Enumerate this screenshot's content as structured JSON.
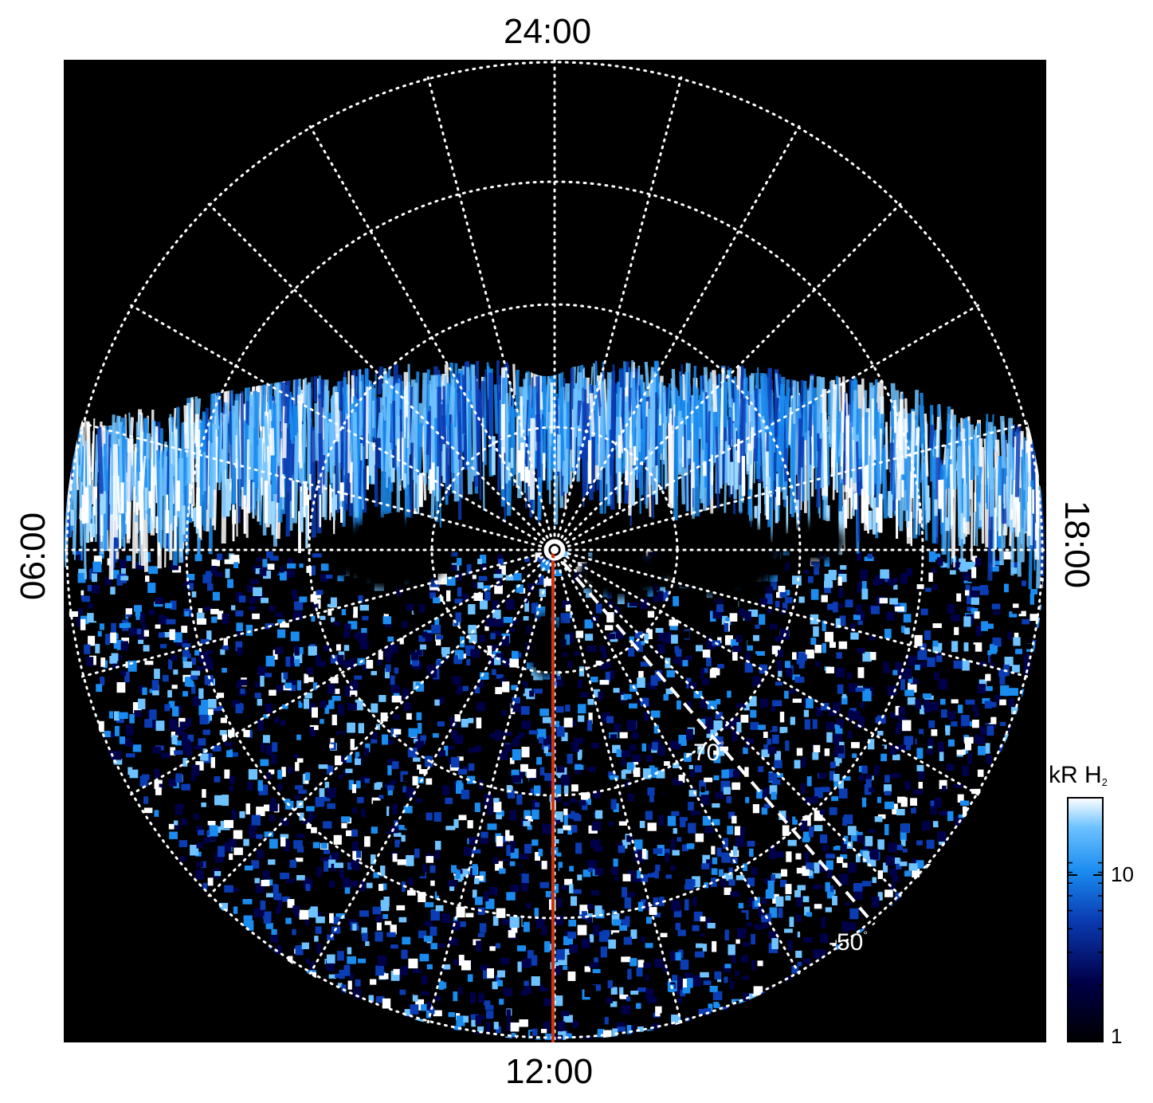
{
  "local_time_labels": {
    "top": "24:00",
    "bottom": "12:00",
    "left": "06:00",
    "right": "18:00"
  },
  "latitude_labels": {
    "inner": "-70",
    "outer": "-50",
    "degree_symbol": "°"
  },
  "colorbar": {
    "title_main": "kR H",
    "title_sub": "2",
    "ticks": [
      "10",
      "1"
    ],
    "scale": "log",
    "range": [
      1,
      20
    ],
    "colors": [
      "#000000",
      "#00004a",
      "#0a3cb4",
      "#1a8cf0",
      "#6ec2ff",
      "#ffffff"
    ]
  },
  "overlay_colors": {
    "grid": "#ffffff",
    "meridian_line": "#cc3311",
    "dashed_line": "#ffffff",
    "background": "#000000"
  }
}
